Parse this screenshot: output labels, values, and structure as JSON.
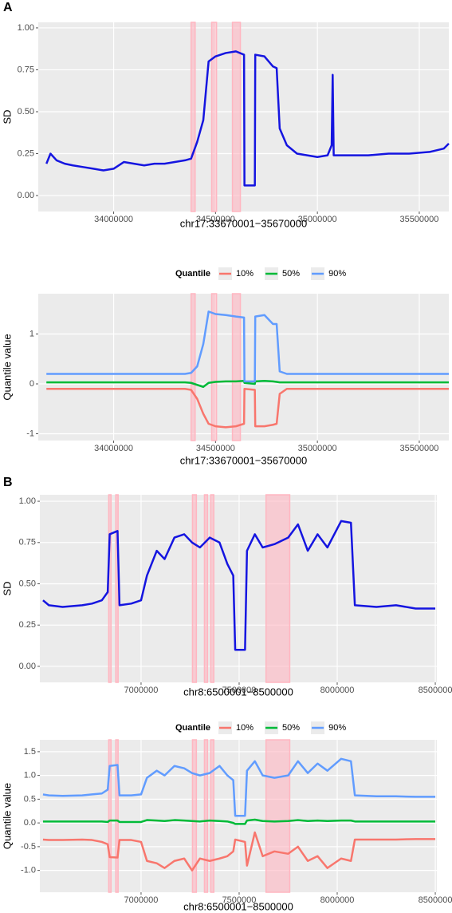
{
  "chart_data": [
    {
      "type": "line",
      "panel_label": "A",
      "xlabel": "chr17:33670001−35670000",
      "ylabel": "SD",
      "grid": true,
      "x": [
        33670000,
        33690000,
        33720000,
        33760000,
        33800000,
        33850000,
        33900000,
        33950000,
        34000000,
        34050000,
        34100000,
        34150000,
        34200000,
        34250000,
        34300000,
        34350000,
        34380000,
        34410000,
        34440000,
        34466000,
        34500000,
        34550000,
        34600000,
        34640000,
        34642000,
        34693000,
        34695000,
        34740000,
        34782000,
        34800000,
        34815000,
        34850000,
        34900000,
        34950000,
        35000000,
        35050000,
        35070000,
        35075000,
        35080000,
        35150000,
        35250000,
        35350000,
        35450000,
        35550000,
        35620000,
        35645000
      ],
      "series": [
        {
          "color": "#1515e0",
          "values": [
            0.19,
            0.25,
            0.21,
            0.19,
            0.18,
            0.17,
            0.16,
            0.15,
            0.16,
            0.2,
            0.19,
            0.18,
            0.19,
            0.19,
            0.2,
            0.21,
            0.22,
            0.32,
            0.45,
            0.8,
            0.83,
            0.85,
            0.86,
            0.84,
            0.06,
            0.06,
            0.84,
            0.83,
            0.77,
            0.76,
            0.4,
            0.3,
            0.25,
            0.24,
            0.23,
            0.24,
            0.3,
            0.72,
            0.24,
            0.24,
            0.24,
            0.25,
            0.25,
            0.26,
            0.28,
            0.31
          ]
        }
      ],
      "highlights": [
        [
          34380000,
          34400000
        ],
        [
          34481000,
          34505000
        ],
        [
          34583000,
          34622000
        ]
      ],
      "highlight_color": "#ffb6c1",
      "xlim": [
        33630000,
        35645000
      ],
      "ylim": [
        -0.095,
        1.033
      ],
      "xticks": [
        34000000,
        34500000,
        35000000,
        35500000
      ],
      "yticks": [
        {
          "value": 0,
          "label": "0.00"
        },
        0.25,
        {
          "value": 0.5,
          "label": "0.50"
        },
        0.75,
        {
          "value": 1,
          "label": "1.00"
        }
      ]
    },
    {
      "type": "line",
      "xlabel": "chr17:33670001−35670000",
      "ylabel": "Quantile value",
      "grid": true,
      "legend_title": "Quantile",
      "legend": "top",
      "x": [
        33670000,
        33690000,
        33720000,
        33760000,
        33800000,
        33850000,
        33900000,
        33950000,
        34000000,
        34050000,
        34100000,
        34150000,
        34200000,
        34250000,
        34300000,
        34350000,
        34380000,
        34410000,
        34440000,
        34466000,
        34500000,
        34550000,
        34600000,
        34640000,
        34642000,
        34693000,
        34695000,
        34740000,
        34782000,
        34800000,
        34815000,
        34850000,
        34900000,
        34950000,
        35000000,
        35050000,
        35070000,
        35075000,
        35080000,
        35150000,
        35250000,
        35350000,
        35450000,
        35550000,
        35620000,
        35645000
      ],
      "series": [
        {
          "name": "10%",
          "color": "#F8766D",
          "values": [
            -0.1,
            -0.1,
            -0.1,
            -0.1,
            -0.1,
            -0.1,
            -0.1,
            -0.1,
            -0.1,
            -0.1,
            -0.1,
            -0.1,
            -0.1,
            -0.1,
            -0.1,
            -0.1,
            -0.12,
            -0.3,
            -0.6,
            -0.8,
            -0.85,
            -0.87,
            -0.85,
            -0.8,
            -0.1,
            -0.12,
            -0.85,
            -0.85,
            -0.82,
            -0.8,
            -0.2,
            -0.1,
            -0.1,
            -0.1,
            -0.1,
            -0.1,
            -0.1,
            -0.1,
            -0.1,
            -0.1,
            -0.1,
            -0.1,
            -0.1,
            -0.1,
            -0.1,
            -0.1
          ]
        },
        {
          "name": "50%",
          "color": "#00BA38",
          "values": [
            0.03,
            0.03,
            0.03,
            0.03,
            0.03,
            0.03,
            0.03,
            0.03,
            0.03,
            0.03,
            0.03,
            0.03,
            0.03,
            0.03,
            0.03,
            0.03,
            0.02,
            -0.02,
            -0.06,
            0.02,
            0.04,
            0.05,
            0.05,
            0.06,
            0.02,
            0.0,
            0.05,
            0.06,
            0.05,
            0.04,
            0.03,
            0.03,
            0.03,
            0.03,
            0.03,
            0.03,
            0.03,
            0.03,
            0.03,
            0.03,
            0.03,
            0.03,
            0.03,
            0.03,
            0.03,
            0.03
          ]
        },
        {
          "name": "90%",
          "color": "#619CFF",
          "values": [
            0.2,
            0.2,
            0.2,
            0.2,
            0.2,
            0.2,
            0.2,
            0.2,
            0.2,
            0.2,
            0.2,
            0.2,
            0.2,
            0.2,
            0.2,
            0.2,
            0.22,
            0.35,
            0.8,
            1.45,
            1.4,
            1.38,
            1.35,
            1.33,
            0.05,
            0.05,
            1.35,
            1.38,
            1.2,
            1.2,
            0.25,
            0.2,
            0.2,
            0.2,
            0.2,
            0.2,
            0.2,
            0.2,
            0.2,
            0.2,
            0.2,
            0.2,
            0.2,
            0.2,
            0.2,
            0.2
          ]
        }
      ],
      "highlights": [
        [
          34380000,
          34400000
        ],
        [
          34481000,
          34505000
        ],
        [
          34583000,
          34622000
        ]
      ],
      "highlight_color": "#ffb6c1",
      "xlim": [
        33630000,
        35645000
      ],
      "ylim": [
        -1.136,
        1.808
      ],
      "xticks": [
        34000000,
        34500000,
        35000000,
        35500000
      ],
      "yticks": [
        -1,
        0,
        1
      ]
    },
    {
      "type": "line",
      "panel_label": "B",
      "xlabel": "chr8:6500001−8500000",
      "ylabel": "SD",
      "grid": true,
      "x": [
        6500000,
        6530000,
        6600000,
        6700000,
        6750000,
        6800000,
        6830000,
        6840000,
        6880000,
        6890000,
        6950000,
        7000000,
        7030000,
        7080000,
        7120000,
        7170000,
        7220000,
        7260000,
        7300000,
        7350000,
        7400000,
        7440000,
        7470000,
        7480000,
        7530000,
        7540000,
        7580000,
        7620000,
        7680000,
        7750000,
        7800000,
        7850000,
        7900000,
        7950000,
        8020000,
        8070000,
        8090000,
        8200000,
        8300000,
        8400000,
        8500000
      ],
      "series": [
        {
          "color": "#1515e0",
          "values": [
            0.4,
            0.37,
            0.36,
            0.37,
            0.38,
            0.4,
            0.45,
            0.8,
            0.82,
            0.37,
            0.38,
            0.4,
            0.55,
            0.7,
            0.65,
            0.78,
            0.8,
            0.75,
            0.72,
            0.78,
            0.75,
            0.62,
            0.55,
            0.1,
            0.1,
            0.7,
            0.8,
            0.72,
            0.74,
            0.78,
            0.86,
            0.7,
            0.8,
            0.72,
            0.88,
            0.87,
            0.37,
            0.36,
            0.37,
            0.35,
            0.35
          ]
        }
      ],
      "highlights": [
        [
          6835000,
          6847000
        ],
        [
          6871000,
          6883000
        ],
        [
          7262000,
          7282000
        ],
        [
          7323000,
          7339000
        ],
        [
          7355000,
          7371000
        ],
        [
          7637000,
          7758000
        ]
      ],
      "highlight_color": "#ffb6c1",
      "xlim": [
        6484000,
        8508000
      ],
      "ylim": [
        -0.097,
        1.039
      ],
      "xticks": [
        7000000,
        7500000,
        8000000,
        8500000
      ],
      "yticks": [
        {
          "value": 0,
          "label": "0.00"
        },
        0.25,
        {
          "value": 0.5,
          "label": "0.50"
        },
        0.75,
        {
          "value": 1,
          "label": "1.00"
        }
      ]
    },
    {
      "type": "line",
      "xlabel": "chr8:6500001−8500000",
      "ylabel": "Quantile value",
      "grid": true,
      "legend_title": "Quantile",
      "legend": "top",
      "x": [
        6500000,
        6530000,
        6600000,
        6700000,
        6750000,
        6800000,
        6830000,
        6840000,
        6880000,
        6890000,
        6950000,
        7000000,
        7030000,
        7080000,
        7120000,
        7170000,
        7220000,
        7260000,
        7300000,
        7350000,
        7400000,
        7440000,
        7470000,
        7480000,
        7530000,
        7540000,
        7580000,
        7620000,
        7680000,
        7750000,
        7800000,
        7850000,
        7900000,
        7950000,
        8020000,
        8070000,
        8090000,
        8200000,
        8300000,
        8400000,
        8500000
      ],
      "series": [
        {
          "name": "10%",
          "color": "#F8766D",
          "values": [
            -0.35,
            -0.36,
            -0.36,
            -0.35,
            -0.36,
            -0.4,
            -0.45,
            -0.72,
            -0.73,
            -0.36,
            -0.36,
            -0.4,
            -0.8,
            -0.85,
            -0.95,
            -0.8,
            -0.75,
            -1.0,
            -0.75,
            -0.8,
            -0.75,
            -0.7,
            -0.6,
            -0.35,
            -0.4,
            -0.9,
            -0.2,
            -0.7,
            -0.6,
            -0.65,
            -0.5,
            -0.8,
            -0.7,
            -0.95,
            -0.75,
            -0.8,
            -0.35,
            -0.35,
            -0.35,
            -0.34,
            -0.34
          ]
        },
        {
          "name": "50%",
          "color": "#00BA38",
          "values": [
            0.03,
            0.03,
            0.03,
            0.03,
            0.03,
            0.03,
            0.02,
            0.05,
            0.05,
            0.02,
            0.02,
            0.02,
            0.06,
            0.05,
            0.04,
            0.06,
            0.05,
            0.04,
            0.03,
            0.05,
            0.04,
            0.03,
            0.0,
            -0.02,
            -0.02,
            0.05,
            0.07,
            0.04,
            0.03,
            0.04,
            0.06,
            0.04,
            0.05,
            0.04,
            0.05,
            0.05,
            0.03,
            0.03,
            0.03,
            0.03,
            0.03
          ]
        },
        {
          "name": "90%",
          "color": "#619CFF",
          "values": [
            0.6,
            0.58,
            0.57,
            0.58,
            0.6,
            0.62,
            0.7,
            1.2,
            1.22,
            0.58,
            0.58,
            0.6,
            0.95,
            1.1,
            1.0,
            1.2,
            1.15,
            1.05,
            1.0,
            1.05,
            1.2,
            1.0,
            0.9,
            0.15,
            0.15,
            1.1,
            1.3,
            1.0,
            0.95,
            1.0,
            1.3,
            1.05,
            1.25,
            1.1,
            1.35,
            1.3,
            0.58,
            0.56,
            0.56,
            0.55,
            0.55
          ]
        }
      ],
      "highlights": [
        [
          6835000,
          6847000
        ],
        [
          6871000,
          6883000
        ],
        [
          7262000,
          7282000
        ],
        [
          7323000,
          7339000
        ],
        [
          7355000,
          7371000
        ],
        [
          7637000,
          7758000
        ]
      ],
      "highlight_color": "#ffb6c1",
      "xlim": [
        6484000,
        8508000
      ],
      "ylim": [
        -1.46,
        1.75
      ],
      "xticks": [
        7000000,
        7500000,
        8000000,
        8500000
      ],
      "yticks": [
        1.5,
        {
          "value": 1,
          "label": "1.0"
        },
        0.5,
        {
          "value": 0,
          "label": "0.0"
        },
        -0.5,
        {
          "value": -1,
          "label": "-1.0"
        }
      ]
    }
  ]
}
